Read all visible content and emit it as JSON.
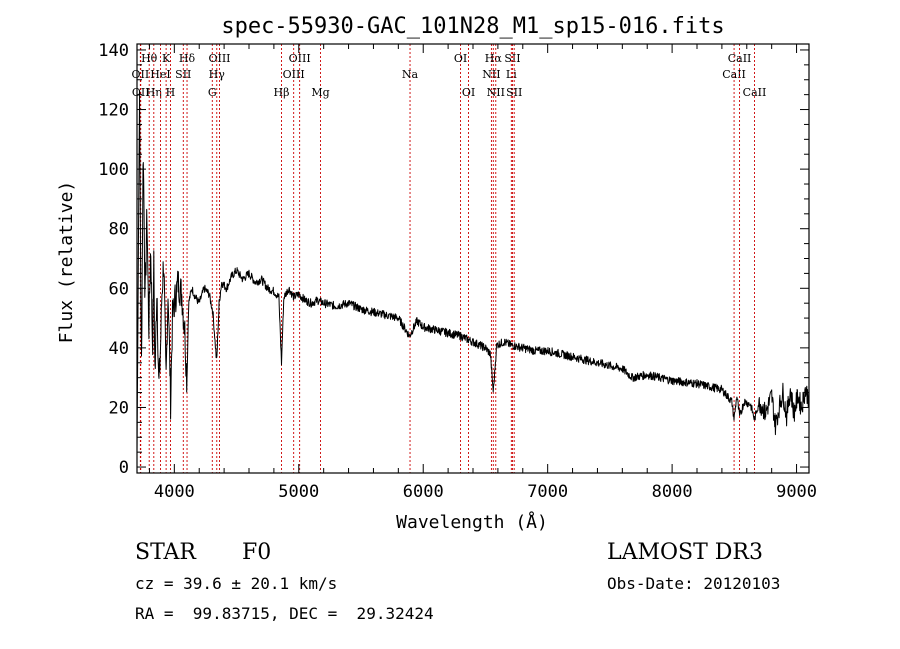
{
  "chart_data": {
    "type": "line",
    "title": "spec-55930-GAC_101N28_M1_sp15-016.fits",
    "xlabel": "Wavelength (Å)",
    "ylabel": "Flux (relative)",
    "xlim": [
      3700,
      9100
    ],
    "ylim": [
      -2,
      142
    ],
    "xticks": [
      4000,
      5000,
      6000,
      7000,
      8000,
      9000
    ],
    "yticks": [
      0,
      20,
      40,
      60,
      80,
      100,
      120,
      140
    ],
    "spectrum": {
      "name": "flux",
      "x": [
        3700,
        3720,
        3735,
        3750,
        3765,
        3780,
        3795,
        3810,
        3825,
        3835,
        3845,
        3860,
        3875,
        3889,
        3900,
        3915,
        3933,
        3950,
        3970,
        3985,
        4000,
        4030,
        4060,
        4085,
        4101,
        4115,
        4140,
        4170,
        4200,
        4240,
        4280,
        4310,
        4340,
        4360,
        4380,
        4420,
        4460,
        4500,
        4550,
        4600,
        4650,
        4700,
        4750,
        4800,
        4840,
        4861,
        4880,
        4920,
        4960,
        5000,
        5050,
        5100,
        5150,
        5200,
        5300,
        5400,
        5500,
        5600,
        5700,
        5800,
        5890,
        5950,
        6000,
        6100,
        6200,
        6300,
        6400,
        6500,
        6540,
        6563,
        6590,
        6650,
        6700,
        6800,
        6900,
        7000,
        7200,
        7400,
        7600,
        7680,
        7800,
        8000,
        8200,
        8400,
        8480,
        8498,
        8520,
        8542,
        8580,
        8630,
        8662,
        8700,
        8750,
        8800,
        8830,
        8860,
        8890,
        8920,
        8950,
        8980,
        9010,
        9040,
        9070,
        9100
      ],
      "y": [
        5,
        128,
        30,
        110,
        55,
        85,
        45,
        75,
        40,
        68,
        30,
        62,
        26,
        40,
        58,
        70,
        28,
        60,
        22,
        50,
        55,
        62,
        58,
        45,
        28,
        55,
        60,
        57,
        55,
        60,
        58,
        52,
        35,
        55,
        62,
        60,
        64,
        66,
        63,
        65,
        62,
        63,
        60,
        59,
        57,
        35,
        57,
        60,
        57,
        58,
        56,
        55,
        56,
        55,
        54,
        55,
        53,
        52,
        51,
        50,
        44,
        49,
        47,
        46,
        45,
        44,
        42,
        40,
        38,
        25,
        41,
        42,
        41,
        40,
        39,
        39,
        37,
        35,
        33,
        30,
        31,
        29,
        28,
        26,
        22,
        16,
        24,
        17,
        22,
        21,
        16,
        22,
        18,
        24,
        14,
        20,
        25,
        17,
        26,
        18,
        24,
        20,
        26,
        23
      ]
    },
    "line_markers": [
      {
        "label": "Hθ",
        "x": 3798,
        "row": 1
      },
      {
        "label": "OII",
        "x": 3727,
        "row": 2
      },
      {
        "label": "OII",
        "x": 3730,
        "row": 3
      },
      {
        "label": "Hη",
        "x": 3835,
        "row": 3
      },
      {
        "label": "HeI",
        "x": 3889,
        "row": 2
      },
      {
        "label": "K",
        "x": 3934,
        "row": 1
      },
      {
        "label": "H",
        "x": 3969,
        "row": 3
      },
      {
        "label": "SII",
        "x": 4072,
        "row": 2
      },
      {
        "label": "Hδ",
        "x": 4102,
        "row": 1
      },
      {
        "label": "G",
        "x": 4305,
        "row": 3
      },
      {
        "label": "Hγ",
        "x": 4341,
        "row": 2
      },
      {
        "label": "OIII",
        "x": 4363,
        "row": 1
      },
      {
        "label": "Hβ",
        "x": 4861,
        "row": 3
      },
      {
        "label": "OIII",
        "x": 4959,
        "row": 2
      },
      {
        "label": "OIII",
        "x": 5007,
        "row": 1
      },
      {
        "label": "Mg",
        "x": 5175,
        "row": 3
      },
      {
        "label": "Na",
        "x": 5894,
        "row": 2
      },
      {
        "label": "OI",
        "x": 6300,
        "row": 1
      },
      {
        "label": "OI",
        "x": 6364,
        "row": 3
      },
      {
        "label": "NII",
        "x": 6548,
        "row": 2
      },
      {
        "label": "Hα",
        "x": 6563,
        "row": 1
      },
      {
        "label": "NII",
        "x": 6583,
        "row": 3
      },
      {
        "label": "Li",
        "x": 6708,
        "row": 2
      },
      {
        "label": "SII",
        "x": 6717,
        "row": 1
      },
      {
        "label": "SII",
        "x": 6731,
        "row": 3
      },
      {
        "label": "CaII",
        "x": 8498,
        "row": 2
      },
      {
        "label": "CaII",
        "x": 8542,
        "row": 1
      },
      {
        "label": "CaII",
        "x": 8662,
        "row": 3
      }
    ],
    "marker_color": "#cc0000",
    "line_color": "#000000"
  },
  "info": {
    "object_class": "STAR",
    "subclass": "F0",
    "survey": "LAMOST DR3",
    "cz": "cz = 39.6 ± 20.1 km/s",
    "obs_date": "Obs-Date: 20120103",
    "coords": "RA =  99.83715, DEC =  29.32424"
  }
}
